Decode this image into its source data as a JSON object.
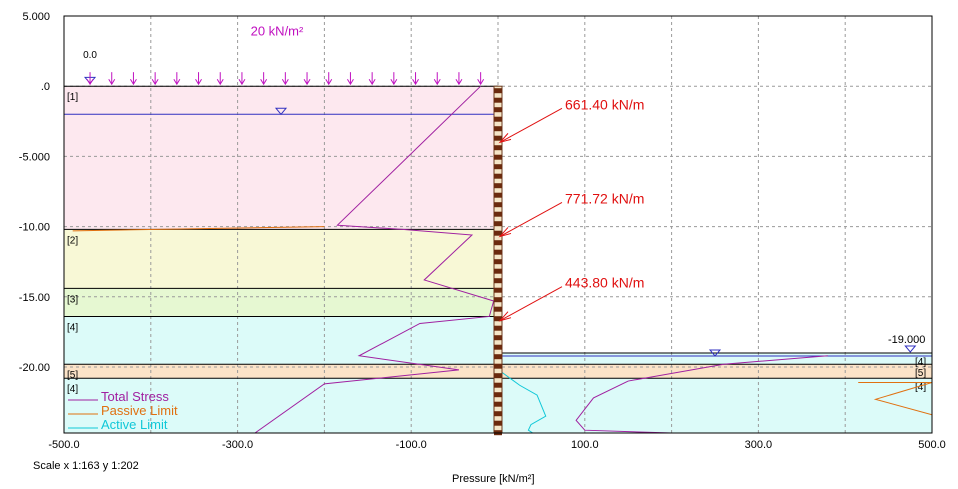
{
  "chart_data": {
    "type": "line",
    "title": "",
    "xlabel": "Pressure [kN/m²]",
    "ylabel": "",
    "xlim": [
      -500,
      500
    ],
    "ylim": [
      -24.7,
      5.0
    ],
    "x_ticks": [
      -500,
      -300,
      -100,
      100,
      300,
      500
    ],
    "x_tick_labels": [
      "-500.0",
      "-300.0",
      "-100.0",
      "100.0",
      "300.0",
      "500.0"
    ],
    "x_grid": [
      -500,
      -400,
      -300,
      -200,
      -100,
      0,
      100,
      200,
      300,
      400,
      500
    ],
    "y_ticks": [
      5,
      0,
      -5,
      -10,
      -15,
      -20
    ],
    "y_tick_labels": [
      "5.000",
      ".0",
      "-5.000",
      "-10.00",
      "-15.00",
      "-20.00"
    ],
    "grid": true,
    "legend_position": "bottom-left",
    "surcharge_label": "20 kN/m²",
    "surcharge_level_label": "0.0",
    "left_ground_level": 0.0,
    "right_ground_level": -19.0,
    "right_ground_label": "-19.000",
    "wall_x": 0,
    "wall_top": 0.0,
    "wall_bottom": -24.7,
    "water_table_left": -2.0,
    "water_table_right": -19.0,
    "soil_layers_left": [
      {
        "label": "[1]",
        "top": 0.0,
        "bottom": -10.2,
        "color": "#fde8ef"
      },
      {
        "label": "[2]",
        "top": -10.2,
        "bottom": -14.4,
        "color": "#f8f8d6"
      },
      {
        "label": "[3]",
        "top": -14.4,
        "bottom": -16.4,
        "color": "#e6f8d2"
      },
      {
        "label": "[4]",
        "top": -16.4,
        "bottom": -19.8,
        "color": "#dcfbf9"
      },
      {
        "label": "[5]",
        "top": -19.8,
        "bottom": -20.8,
        "color": "#fbe3c8"
      },
      {
        "label": "[4]",
        "top": -20.8,
        "bottom": -24.7,
        "color": "#dcfbf9"
      }
    ],
    "soil_layers_right": [
      {
        "label": "[4]",
        "top": -19.0,
        "bottom": -19.8,
        "color": "#dcfbf9"
      },
      {
        "label": "[5]",
        "top": -19.8,
        "bottom": -20.8,
        "color": "#fbe3c8"
      },
      {
        "label": "[4]",
        "top": -20.8,
        "bottom": -24.7,
        "color": "#dcfbf9"
      }
    ],
    "anchors": [
      {
        "label": "661.40 kN/m",
        "level": -4.0
      },
      {
        "label": "771.72 kN/m",
        "level": -10.7
      },
      {
        "label": "443.80 kN/m",
        "level": -16.7
      }
    ],
    "series": [
      {
        "name": "Total Stress",
        "color": "#a020a0",
        "points": [
          [
            -20,
            0.0
          ],
          [
            -185,
            -9.9
          ],
          [
            -110,
            -10.2
          ],
          [
            -30,
            -10.6
          ],
          [
            -85,
            -13.8
          ],
          [
            -5,
            -15.3
          ],
          [
            -10,
            -16.4
          ],
          [
            -90,
            -16.9
          ],
          [
            -160,
            -19.2
          ],
          [
            -45,
            -20.2
          ],
          [
            -200,
            -21.2
          ],
          [
            -280,
            -24.7
          ]
        ]
      },
      {
        "name": "Passive Limit",
        "color": "#e07010",
        "points": [
          [
            -490,
            -10.3
          ],
          [
            -200,
            -10.0
          ]
        ]
      },
      {
        "name": "Active Limit",
        "color": "#10c8d8",
        "points": [
          [
            5,
            -20.4
          ],
          [
            25,
            -21.3
          ],
          [
            45,
            -22.0
          ],
          [
            55,
            -23.5
          ],
          [
            38,
            -24.1
          ],
          [
            35,
            -24.5
          ],
          [
            40,
            -24.7
          ]
        ]
      },
      {
        "name": "Total Stress (right)",
        "color": "#a020a0",
        "points": [
          [
            380,
            -19.2
          ],
          [
            260,
            -19.8
          ],
          [
            150,
            -21.0
          ],
          [
            110,
            -22.2
          ],
          [
            90,
            -23.8
          ],
          [
            100,
            -24.5
          ],
          [
            200,
            -24.7
          ]
        ]
      },
      {
        "name": "Passive Limit (right)",
        "color": "#e07010",
        "points": [
          [
            415,
            -21.1
          ],
          [
            500,
            -21.1
          ],
          [
            435,
            -22.3
          ],
          [
            500,
            -23.4
          ]
        ]
      }
    ],
    "legend": [
      {
        "name": "Total Stress",
        "color": "#a020a0"
      },
      {
        "name": "Passive Limit",
        "color": "#e07010"
      },
      {
        "name": "Active Limit",
        "color": "#10c8d8"
      }
    ]
  },
  "footer": {
    "scale": "Scale x 1:163  y 1:202"
  }
}
